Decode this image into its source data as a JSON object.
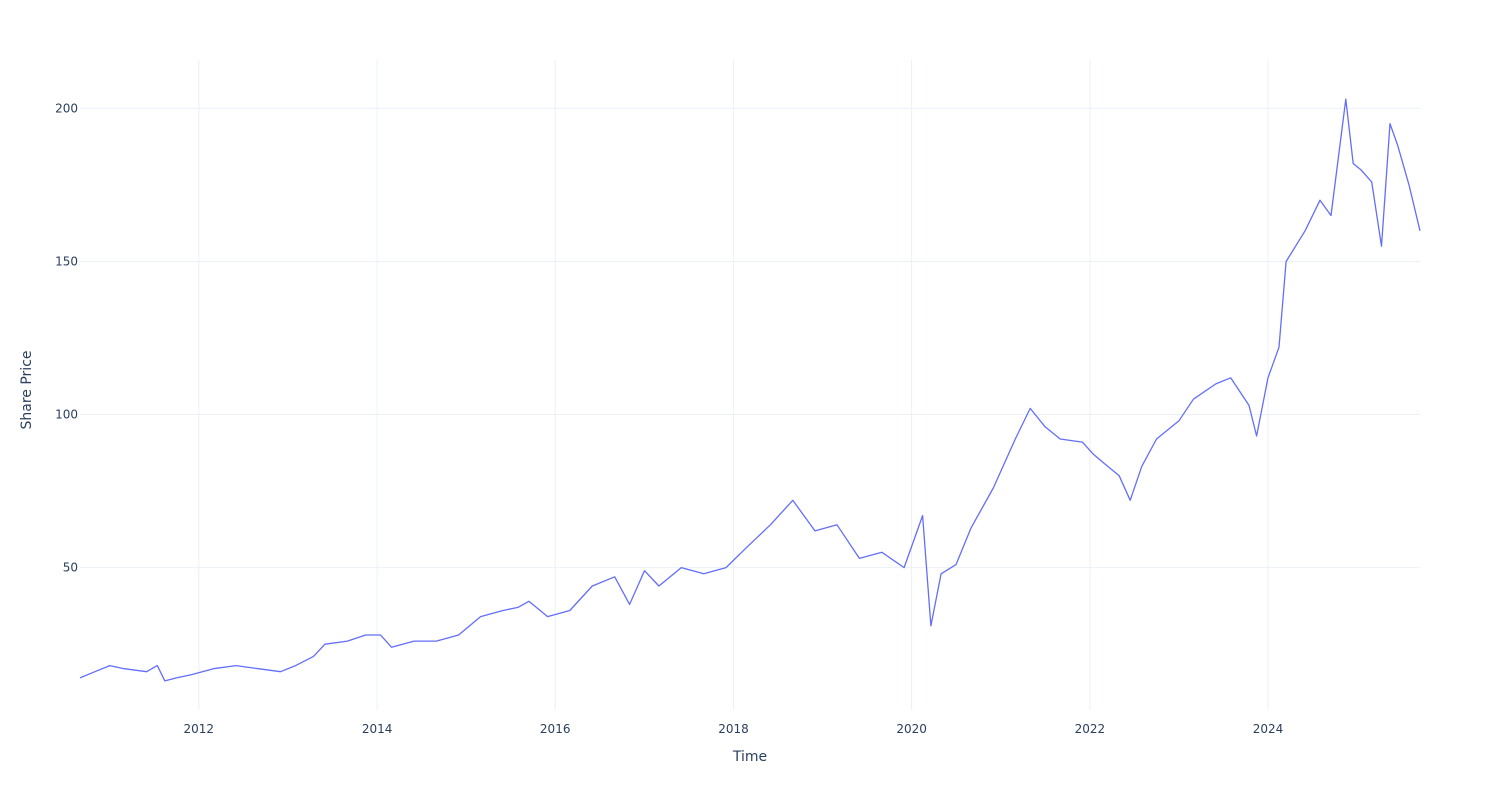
{
  "chart_data": {
    "type": "line",
    "title": "",
    "xlabel": "Time",
    "ylabel": "Share Price",
    "xlim": [
      "2010-09-01",
      "2025-09-15"
    ],
    "ylim": [
      3.5,
      215.8
    ],
    "grid": true,
    "legend": "none",
    "line_color": "#636efa",
    "x_ticks": [
      {
        "date": "2012-01-01",
        "label": "2012"
      },
      {
        "date": "2014-01-01",
        "label": "2014"
      },
      {
        "date": "2016-01-01",
        "label": "2016"
      },
      {
        "date": "2018-01-01",
        "label": "2018"
      },
      {
        "date": "2020-01-01",
        "label": "2020"
      },
      {
        "date": "2022-01-01",
        "label": "2022"
      },
      {
        "date": "2024-01-01",
        "label": "2024"
      }
    ],
    "y_ticks": [
      {
        "value": 50,
        "label": "50"
      },
      {
        "value": 100,
        "label": "100"
      },
      {
        "value": 150,
        "label": "150"
      },
      {
        "value": 200,
        "label": "200"
      }
    ],
    "series": [
      {
        "x": [
          "2010-09-01",
          "2010-11-01",
          "2011-01-01",
          "2011-03-01",
          "2011-06-01",
          "2011-07-15",
          "2011-08-15",
          "2011-10-01",
          "2011-12-01",
          "2012-03-01",
          "2012-06-01",
          "2012-09-01",
          "2012-12-01",
          "2013-02-01",
          "2013-04-15",
          "2013-06-01",
          "2013-09-01",
          "2013-11-15",
          "2014-01-15",
          "2014-03-01",
          "2014-06-01",
          "2014-09-01",
          "2014-12-01",
          "2015-03-01",
          "2015-06-01",
          "2015-08-01",
          "2015-09-15",
          "2015-12-01",
          "2016-03-01",
          "2016-06-01",
          "2016-09-01",
          "2016-11-01",
          "2017-01-01",
          "2017-03-01",
          "2017-06-01",
          "2017-09-01",
          "2017-12-01",
          "2018-03-01",
          "2018-06-01",
          "2018-09-01",
          "2018-12-01",
          "2019-03-01",
          "2019-06-01",
          "2019-09-01",
          "2019-12-01",
          "2020-01-15",
          "2020-02-15",
          "2020-03-20",
          "2020-05-01",
          "2020-07-01",
          "2020-09-01",
          "2020-12-01",
          "2021-03-01",
          "2021-05-01",
          "2021-07-01",
          "2021-09-01",
          "2021-12-01",
          "2022-01-15",
          "2022-03-01",
          "2022-05-01",
          "2022-06-15",
          "2022-08-01",
          "2022-10-01",
          "2023-01-01",
          "2023-03-01",
          "2023-06-01",
          "2023-08-01",
          "2023-10-15",
          "2023-11-15",
          "2024-01-01",
          "2024-02-15",
          "2024-03-15",
          "2024-06-01",
          "2024-08-01",
          "2024-09-15",
          "2024-11-15",
          "2024-12-15",
          "2025-01-15",
          "2025-03-01",
          "2025-04-10",
          "2025-05-15",
          "2025-06-15",
          "2025-08-01",
          "2025-09-15"
        ],
        "y": [
          14,
          16,
          18,
          17,
          16,
          18,
          13,
          14,
          15,
          17,
          18,
          17,
          16,
          18,
          21,
          25,
          26,
          28,
          28,
          24,
          26,
          26,
          28,
          34,
          36,
          37,
          39,
          34,
          36,
          44,
          47,
          38,
          49,
          44,
          50,
          48,
          50,
          57,
          64,
          72,
          62,
          64,
          53,
          55,
          50,
          60,
          67,
          31,
          48,
          51,
          63,
          76,
          92,
          102,
          96,
          92,
          91,
          87,
          84,
          80,
          72,
          83,
          92,
          98,
          105,
          110,
          112,
          103,
          93,
          112,
          122,
          150,
          160,
          170,
          165,
          203,
          182,
          180,
          176,
          155,
          195,
          188,
          175,
          160
        ]
      }
    ]
  }
}
